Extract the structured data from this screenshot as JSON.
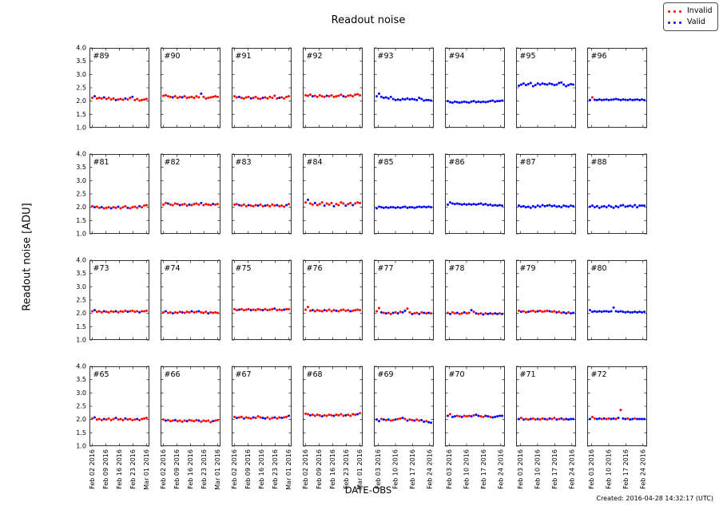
{
  "figure": {
    "title": "Readout noise",
    "ylabel": "Readout noise [ADU]",
    "xlabel": "DATE-OBS",
    "created": "Created: 2016-04-28 14:32:17 (UTC)"
  },
  "legend": {
    "items": [
      {
        "label": "Invalid",
        "color": "#ff0000"
      },
      {
        "label": "Valid",
        "color": "#0000ff"
      }
    ]
  },
  "chart_data": {
    "type": "scatter",
    "title": "Readout noise",
    "ylabel": "Readout noise [ADU]",
    "xlabel": "DATE-OBS",
    "ylim": [
      1.0,
      4.0
    ],
    "yticks": [
      1.0,
      1.5,
      2.0,
      2.5,
      3.0,
      3.5,
      4.0
    ],
    "grid": false,
    "legend_position": "top-right",
    "point_colors": {
      "invalid": "#ff0000",
      "valid": "#0000ff"
    },
    "xticklabels_groupA": [
      "Feb 02 2016",
      "Feb 09 2016",
      "Feb 16 2016",
      "Feb 23 2016",
      "Mar 01 2016"
    ],
    "xticklabels_groupB": [
      "Feb 03 2016",
      "Feb 10 2016",
      "Feb 17 2016",
      "Feb 24 2016"
    ],
    "layout": {
      "rows": 4,
      "cols": 8,
      "note": "columns 1-4 use groupA ticks, columns 5-8 use groupB ticks"
    },
    "subplots": [
      {
        "id": "#89",
        "y": [
          2.12,
          2.18,
          2.1,
          2.12,
          2.1,
          2.14,
          2.08,
          2.12,
          2.06,
          2.1,
          2.04,
          2.06,
          2.08,
          2.05,
          2.1,
          2.06,
          2.12,
          2.16,
          2.04,
          2.08,
          2.02,
          2.04,
          2.06,
          2.08
        ],
        "c": "rbrrrbrrrrbrrrbrrbrrrrrr"
      },
      {
        "id": "#90",
        "y": [
          2.2,
          2.22,
          2.18,
          2.16,
          2.14,
          2.18,
          2.12,
          2.16,
          2.14,
          2.18,
          2.12,
          2.14,
          2.16,
          2.12,
          2.18,
          2.14,
          2.28,
          2.16,
          2.1,
          2.12,
          2.14,
          2.16,
          2.18,
          2.16
        ],
        "c": "rrrrbrrrbrrrrrrrbrrrrrrr"
      },
      {
        "id": "#91",
        "y": [
          2.18,
          2.14,
          2.16,
          2.12,
          2.1,
          2.14,
          2.16,
          2.1,
          2.12,
          2.16,
          2.1,
          2.08,
          2.12,
          2.14,
          2.1,
          2.16,
          2.12,
          2.2,
          2.1,
          2.12,
          2.14,
          2.1,
          2.16,
          2.18
        ],
        "c": "rrbrrrrbrrrrbrrrrrrbrrrr"
      },
      {
        "id": "#92",
        "y": [
          2.22,
          2.2,
          2.24,
          2.18,
          2.2,
          2.16,
          2.22,
          2.18,
          2.16,
          2.2,
          2.18,
          2.22,
          2.16,
          2.18,
          2.2,
          2.24,
          2.18,
          2.16,
          2.2,
          2.22,
          2.18,
          2.24,
          2.26,
          2.22
        ],
        "c": "rrrbrrrrrbrrrrrrbrrrrrrr"
      },
      {
        "id": "#93",
        "y": [
          2.18,
          2.28,
          2.16,
          2.12,
          2.14,
          2.1,
          2.16,
          2.08,
          2.04,
          2.06,
          2.04,
          2.08,
          2.06,
          2.1,
          2.06,
          2.08,
          2.06,
          2.04,
          2.12,
          2.08,
          2.02,
          2.04,
          2.04,
          2.02
        ],
        "c": "bbbbbbbbbbbbbbbbbbbbbbbb"
      },
      {
        "id": "#94",
        "y": [
          2.0,
          1.96,
          1.94,
          1.98,
          1.96,
          1.94,
          1.96,
          1.98,
          1.96,
          1.94,
          1.98,
          2.0,
          1.96,
          1.98,
          1.96,
          1.98,
          1.96,
          1.98,
          2.0,
          2.02,
          1.98,
          2.0,
          2.0,
          2.02
        ],
        "c": "bbbbbbbbbbbbbbbbbbbbbbbb"
      },
      {
        "id": "#95",
        "y": [
          2.58,
          2.62,
          2.66,
          2.6,
          2.64,
          2.68,
          2.56,
          2.6,
          2.66,
          2.62,
          2.66,
          2.64,
          2.62,
          2.66,
          2.64,
          2.6,
          2.62,
          2.68,
          2.7,
          2.62,
          2.56,
          2.6,
          2.64,
          2.62
        ],
        "c": "bbbbbbbbbbbbbbbbbbbbbbbb"
      },
      {
        "id": "#96",
        "y": [
          2.04,
          2.14,
          2.05,
          2.04,
          2.06,
          2.04,
          2.05,
          2.06,
          2.04,
          2.05,
          2.06,
          2.08,
          2.06,
          2.04,
          2.06,
          2.05,
          2.04,
          2.06,
          2.04,
          2.05,
          2.06,
          2.04,
          2.06,
          2.04
        ],
        "c": "brbbbbbbbbbbbbbbbbbbbbbb"
      },
      {
        "id": "#81",
        "y": [
          2.04,
          2.0,
          2.02,
          1.98,
          2.0,
          1.96,
          1.98,
          2.0,
          1.96,
          2.0,
          1.98,
          2.02,
          1.96,
          2.0,
          2.04,
          1.98,
          1.96,
          2.0,
          2.02,
          1.98,
          2.04,
          2.0,
          2.06,
          2.08
        ],
        "c": "rbrrbrrrbrrbrrrbrrrrbrrr"
      },
      {
        "id": "#82",
        "y": [
          2.1,
          2.16,
          2.14,
          2.1,
          2.08,
          2.14,
          2.12,
          2.08,
          2.1,
          2.12,
          2.06,
          2.1,
          2.08,
          2.12,
          2.14,
          2.1,
          2.16,
          2.08,
          2.12,
          2.1,
          2.08,
          2.12,
          2.1,
          2.12
        ],
        "c": "rrbrrrrbrrrbrrrrbrrrrbrr"
      },
      {
        "id": "#83",
        "y": [
          2.1,
          2.12,
          2.08,
          2.06,
          2.1,
          2.04,
          2.08,
          2.06,
          2.04,
          2.08,
          2.06,
          2.1,
          2.04,
          2.06,
          2.08,
          2.04,
          2.1,
          2.06,
          2.08,
          2.04,
          2.06,
          2.02,
          2.08,
          2.12
        ],
        "c": "rrbrrrbrrrbrrbrrrrbrrrbr"
      },
      {
        "id": "#84",
        "y": [
          2.18,
          2.28,
          2.14,
          2.1,
          2.16,
          2.08,
          2.12,
          2.18,
          2.06,
          2.14,
          2.1,
          2.16,
          2.04,
          2.12,
          2.08,
          2.18,
          2.14,
          2.06,
          2.12,
          2.16,
          2.08,
          2.14,
          2.18,
          2.16
        ],
        "c": "rbrrbrrrbrrrbrrrrbrrbrrr"
      },
      {
        "id": "#85",
        "y": [
          1.96,
          2.02,
          2.0,
          1.98,
          2.0,
          1.98,
          2.0,
          2.0,
          1.98,
          2.0,
          1.98,
          2.0,
          2.02,
          1.98,
          2.0,
          2.0,
          1.98,
          2.0,
          2.02,
          2.0,
          2.02,
          2.0,
          2.02,
          2.0
        ],
        "c": "bbbbbbbbbbbbbbbbbbbbbbbb"
      },
      {
        "id": "#86",
        "y": [
          2.1,
          2.18,
          2.14,
          2.12,
          2.14,
          2.12,
          2.1,
          2.12,
          2.1,
          2.12,
          2.1,
          2.12,
          2.1,
          2.12,
          2.14,
          2.1,
          2.12,
          2.08,
          2.1,
          2.06,
          2.08,
          2.06,
          2.08,
          2.06
        ],
        "c": "bbbbbbbbbbbbbbbbbbbbbbbb"
      },
      {
        "id": "#87",
        "y": [
          2.06,
          2.02,
          2.04,
          2.0,
          2.02,
          1.98,
          2.04,
          2.0,
          2.06,
          2.02,
          2.08,
          2.04,
          2.06,
          2.08,
          2.04,
          2.06,
          2.02,
          2.04,
          2.0,
          2.06,
          2.04,
          2.02,
          2.06,
          2.04
        ],
        "c": "bbbbbbbbbbbbbbbbbbbbbbbb"
      },
      {
        "id": "#88",
        "y": [
          2.02,
          2.06,
          2.0,
          2.04,
          1.98,
          2.02,
          2.04,
          2.0,
          2.06,
          2.02,
          1.98,
          2.04,
          2.0,
          2.06,
          2.08,
          2.02,
          2.04,
          2.06,
          2.02,
          2.08,
          2.0,
          2.06,
          2.06,
          2.06
        ],
        "c": "bbbbbbbbbbbbbbbbbbbbbbbb"
      },
      {
        "id": "#73",
        "y": [
          2.08,
          2.12,
          2.06,
          2.08,
          2.04,
          2.08,
          2.06,
          2.04,
          2.08,
          2.06,
          2.08,
          2.04,
          2.08,
          2.06,
          2.1,
          2.06,
          2.08,
          2.1,
          2.06,
          2.08,
          2.04,
          2.08,
          2.08,
          2.1
        ],
        "c": "rbrrrbrrrrbrrrrbrrrrbrrr"
      },
      {
        "id": "#74",
        "y": [
          2.04,
          2.08,
          2.02,
          2.04,
          2.0,
          2.04,
          2.02,
          2.06,
          2.04,
          2.02,
          2.06,
          2.04,
          2.08,
          2.04,
          2.06,
          2.08,
          2.04,
          2.02,
          2.06,
          2.0,
          2.04,
          2.02,
          2.04,
          2.02
        ],
        "c": "rbrrbrrrbrrrbrrbrrrbrrrr"
      },
      {
        "id": "#75",
        "y": [
          2.16,
          2.12,
          2.14,
          2.16,
          2.12,
          2.14,
          2.16,
          2.12,
          2.14,
          2.12,
          2.16,
          2.14,
          2.12,
          2.16,
          2.12,
          2.14,
          2.16,
          2.18,
          2.12,
          2.14,
          2.12,
          2.14,
          2.16,
          2.16
        ],
        "c": "rrbrrrrbrrrrbrrrrbrrrbrr"
      },
      {
        "id": "#76",
        "y": [
          2.14,
          2.24,
          2.1,
          2.12,
          2.08,
          2.12,
          2.1,
          2.08,
          2.12,
          2.1,
          2.14,
          2.08,
          2.12,
          2.1,
          2.08,
          2.12,
          2.14,
          2.1,
          2.12,
          2.08,
          2.1,
          2.12,
          2.14,
          2.12
        ],
        "c": "rrrbrrrrbrrrrbrrrrrbrrrr"
      },
      {
        "id": "#77",
        "y": [
          2.08,
          2.2,
          2.04,
          2.02,
          2.0,
          2.02,
          1.98,
          2.02,
          2.04,
          2.0,
          2.06,
          2.04,
          2.1,
          2.18,
          2.04,
          1.98,
          2.0,
          2.02,
          1.98,
          2.04,
          2.02,
          2.0,
          2.02,
          2.0
        ],
        "c": "rrbrbrrbrbrbbrrbrrbrbrbr"
      },
      {
        "id": "#78",
        "y": [
          2.02,
          1.98,
          2.04,
          2.0,
          2.02,
          1.98,
          2.0,
          2.04,
          2.0,
          2.02,
          2.12,
          2.06,
          2.0,
          1.98,
          2.0,
          1.96,
          2.0,
          1.98,
          2.0,
          1.98,
          2.0,
          1.98,
          2.0,
          1.98
        ],
        "c": "rbrrbrrbrrbrbrrbrbbrbbrb"
      },
      {
        "id": "#79",
        "y": [
          2.1,
          2.06,
          2.08,
          2.04,
          2.06,
          2.08,
          2.1,
          2.06,
          2.08,
          2.1,
          2.06,
          2.08,
          2.1,
          2.08,
          2.06,
          2.08,
          2.04,
          2.06,
          2.02,
          2.04,
          2.0,
          2.04,
          2.0,
          2.02
        ],
        "c": "rbrrbrrrbrrrrbrrbrrbbrbb"
      },
      {
        "id": "#80",
        "y": [
          2.12,
          2.06,
          2.08,
          2.06,
          2.08,
          2.06,
          2.08,
          2.08,
          2.06,
          2.08,
          2.22,
          2.08,
          2.06,
          2.08,
          2.06,
          2.04,
          2.06,
          2.04,
          2.04,
          2.06,
          2.04,
          2.06,
          2.04,
          2.06
        ],
        "c": "bbbbbbbbbbbbbbbbbbbbbbbb"
      },
      {
        "id": "#65",
        "y": [
          2.04,
          2.08,
          2.0,
          2.02,
          1.98,
          2.02,
          2.0,
          2.04,
          1.98,
          2.02,
          2.06,
          2.0,
          2.02,
          1.98,
          2.04,
          2.0,
          2.02,
          1.98,
          2.0,
          2.02,
          1.98,
          2.02,
          2.04,
          2.06
        ],
        "c": "rbrrrbrrrrbrrrbrrrrbrrrr"
      },
      {
        "id": "#66",
        "y": [
          2.0,
          1.96,
          1.98,
          1.94,
          1.96,
          1.98,
          1.94,
          1.96,
          1.92,
          1.96,
          1.94,
          1.98,
          1.96,
          1.94,
          1.98,
          1.96,
          1.92,
          1.96,
          1.94,
          1.96,
          1.9,
          1.94,
          1.96,
          1.98
        ],
        "c": "rbrrrbrrrrbrrrrbrrrrrbrr"
      },
      {
        "id": "#67",
        "y": [
          2.1,
          2.06,
          2.08,
          2.1,
          2.04,
          2.08,
          2.06,
          2.04,
          2.08,
          2.06,
          2.12,
          2.08,
          2.06,
          2.04,
          2.08,
          2.02,
          2.06,
          2.08,
          2.04,
          2.08,
          2.06,
          2.08,
          2.1,
          2.14
        ],
        "c": "rbrrbrrrbrrrbbrrrbrrbrrb"
      },
      {
        "id": "#68",
        "y": [
          2.22,
          2.2,
          2.16,
          2.18,
          2.14,
          2.18,
          2.16,
          2.12,
          2.16,
          2.14,
          2.18,
          2.16,
          2.14,
          2.18,
          2.16,
          2.2,
          2.14,
          2.16,
          2.18,
          2.14,
          2.2,
          2.18,
          2.2,
          2.24
        ],
        "c": "rrbrrrrbrrrrbrrrrbrrrrbr"
      },
      {
        "id": "#69",
        "y": [
          2.0,
          1.94,
          2.02,
          2.0,
          1.98,
          2.0,
          1.96,
          1.98,
          2.0,
          2.02,
          2.04,
          2.06,
          2.02,
          1.96,
          2.0,
          1.98,
          1.96,
          2.0,
          1.96,
          1.98,
          1.92,
          1.94,
          1.9,
          1.88
        ],
        "c": "bbrbrbrrbrrbrbrrbrrbbrbb"
      },
      {
        "id": "#70",
        "y": [
          2.14,
          2.2,
          2.1,
          2.12,
          2.14,
          2.12,
          2.1,
          2.14,
          2.12,
          2.14,
          2.12,
          2.16,
          2.18,
          2.14,
          2.12,
          2.1,
          2.14,
          2.12,
          2.1,
          2.08,
          2.1,
          2.12,
          2.14,
          2.14
        ],
        "c": "brbbrrbrrrbrbbrrbbrbbbbb"
      },
      {
        "id": "#71",
        "y": [
          2.02,
          2.06,
          2.0,
          2.02,
          2.0,
          2.02,
          2.04,
          2.0,
          2.02,
          2.0,
          2.04,
          2.02,
          2.0,
          2.04,
          2.02,
          2.06,
          2.0,
          2.02,
          2.04,
          2.0,
          2.02,
          2.0,
          2.02,
          2.02
        ],
        "c": "brbrrbrrbrrbrbrrbrbrbbbb"
      },
      {
        "id": "#72",
        "y": [
          2.02,
          2.1,
          2.04,
          2.02,
          2.04,
          2.02,
          2.04,
          2.02,
          2.04,
          2.02,
          2.04,
          2.02,
          2.06,
          2.36,
          2.04,
          2.02,
          2.04,
          2.0,
          2.02,
          2.04,
          2.02,
          2.02,
          2.02,
          2.02
        ],
        "c": "brrbbrbrrbbrbrbbrbbrbbbb"
      }
    ]
  }
}
